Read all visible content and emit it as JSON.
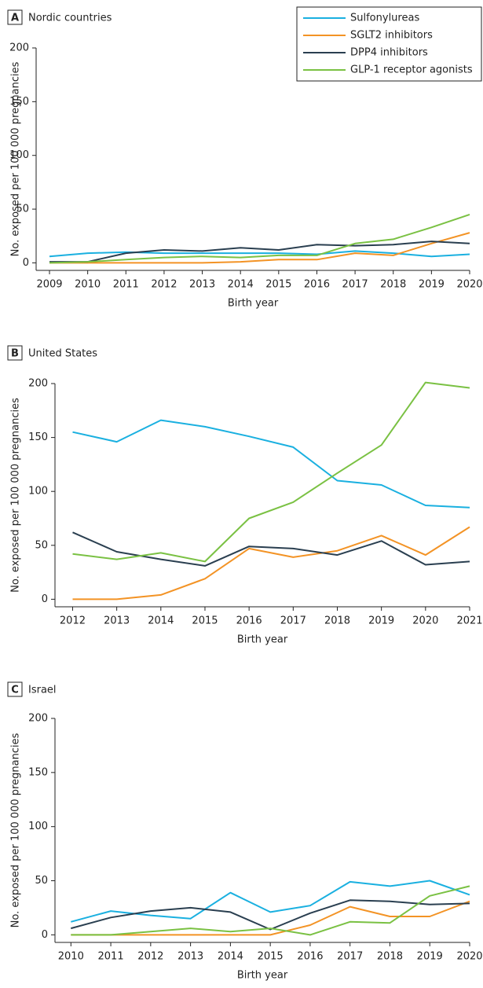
{
  "chart_data": [
    {
      "type": "line",
      "label": "A",
      "title": "Nordic countries",
      "ylabel": "No. exposed per 100 000 pregnancies",
      "xlabel": "Birth year",
      "x": [
        2009,
        2010,
        2011,
        2012,
        2013,
        2014,
        2015,
        2016,
        2017,
        2018,
        2019,
        2020
      ],
      "xlim": [
        2008.65,
        2020
      ],
      "xticks": [
        2009,
        2010,
        2011,
        2012,
        2013,
        2014,
        2015,
        2016,
        2017,
        2018,
        2019,
        2020
      ],
      "ylim": [
        -7,
        200
      ],
      "yticks": [
        0,
        50,
        100,
        150,
        200
      ],
      "grid": false,
      "legend": "upper right",
      "series": [
        {
          "name": "Sulfonylureas",
          "color": "#1ab0e0",
          "values": [
            6,
            9,
            10,
            9,
            9,
            9,
            9,
            8,
            11,
            9,
            6,
            8
          ]
        },
        {
          "name": "SGLT2 inhibitors",
          "color": "#f39325",
          "values": [
            0,
            0,
            0,
            0,
            0,
            1,
            3,
            3,
            9,
            7,
            18,
            28
          ]
        },
        {
          "name": "DPP4 inhibitors",
          "color": "#2a3f50",
          "values": [
            1,
            1,
            9,
            12,
            11,
            14,
            12,
            17,
            16,
            17,
            20,
            18
          ]
        },
        {
          "name": "GLP-1 receptor agonists",
          "color": "#7ac143",
          "values": [
            0,
            1,
            3,
            5,
            6,
            5,
            7,
            7,
            18,
            22,
            33,
            45
          ]
        }
      ]
    },
    {
      "type": "line",
      "label": "B",
      "title": "United States",
      "ylabel": "No. exposed per 100 000 pregnancies",
      "xlabel": "Birth year",
      "x": [
        2012,
        2013,
        2014,
        2015,
        2016,
        2017,
        2018,
        2019,
        2020,
        2021
      ],
      "xlim": [
        2011.6,
        2021
      ],
      "xticks": [
        2012,
        2013,
        2014,
        2015,
        2016,
        2017,
        2018,
        2019,
        2020,
        2021
      ],
      "ylim": [
        -7,
        200
      ],
      "yticks": [
        0,
        50,
        100,
        150,
        200
      ],
      "grid": false,
      "series": [
        {
          "color": "#1ab0e0",
          "values": [
            155,
            146,
            166,
            160,
            151,
            141,
            110,
            106,
            87,
            85
          ]
        },
        {
          "color": "#f39325",
          "values": [
            0,
            0,
            4,
            19,
            47,
            39,
            45,
            59,
            41,
            67
          ]
        },
        {
          "color": "#2a3f50",
          "values": [
            62,
            44,
            37,
            31,
            49,
            47,
            41,
            54,
            32,
            35
          ]
        },
        {
          "color": "#7ac143",
          "values": [
            42,
            37,
            43,
            35,
            75,
            90,
            117,
            143,
            201,
            196
          ]
        }
      ]
    },
    {
      "type": "line",
      "label": "C",
      "title": "Israel",
      "ylabel": "No. exposed per 100 000 pregnancies",
      "xlabel": "Birth year",
      "x": [
        2010,
        2011,
        2012,
        2013,
        2014,
        2015,
        2016,
        2017,
        2018,
        2019,
        2020
      ],
      "xlim": [
        2009.6,
        2020
      ],
      "xticks": [
        2010,
        2011,
        2012,
        2013,
        2014,
        2015,
        2016,
        2017,
        2018,
        2019,
        2020
      ],
      "ylim": [
        -7,
        200
      ],
      "yticks": [
        0,
        50,
        100,
        150,
        200
      ],
      "grid": false,
      "series": [
        {
          "color": "#1ab0e0",
          "values": [
            12,
            22,
            18,
            15,
            39,
            21,
            27,
            49,
            45,
            50,
            37
          ]
        },
        {
          "color": "#f39325",
          "values": [
            0,
            0,
            0,
            0,
            0,
            0,
            9,
            26,
            17,
            17,
            31
          ]
        },
        {
          "color": "#2a3f50",
          "values": [
            6,
            16,
            22,
            25,
            21,
            5,
            20,
            32,
            31,
            28,
            29
          ]
        },
        {
          "color": "#7ac143",
          "values": [
            0,
            0,
            3,
            6,
            3,
            6,
            0,
            12,
            11,
            36,
            45
          ]
        }
      ]
    }
  ]
}
